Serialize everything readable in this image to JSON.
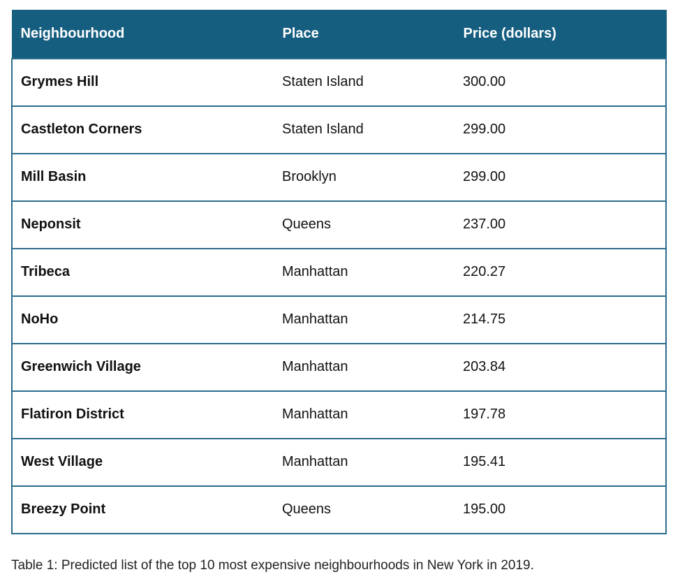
{
  "colors": {
    "header_bg": "#165e80",
    "header_text": "#ffffff",
    "border": "#2b6b8c"
  },
  "table": {
    "headers": [
      "Neighbourhood",
      "Place",
      "Price (dollars)"
    ],
    "rows": [
      [
        "Grymes Hill",
        "Staten Island",
        "300.00"
      ],
      [
        "Castleton Corners",
        "Staten Island",
        "299.00"
      ],
      [
        "Mill Basin",
        "Brooklyn",
        "299.00"
      ],
      [
        "Neponsit",
        "Queens",
        "237.00"
      ],
      [
        "Tribeca",
        "Manhattan",
        "220.27"
      ],
      [
        "NoHo",
        "Manhattan",
        "214.75"
      ],
      [
        "Greenwich Village",
        "Manhattan",
        "203.84"
      ],
      [
        "Flatiron District",
        "Manhattan",
        "197.78"
      ],
      [
        "West Village",
        "Manhattan",
        "195.41"
      ],
      [
        "Breezy Point",
        "Queens",
        "195.00"
      ]
    ]
  },
  "caption": "Table 1: Predicted list of the top 10 most expensive neighbourhoods in New York in 2019."
}
